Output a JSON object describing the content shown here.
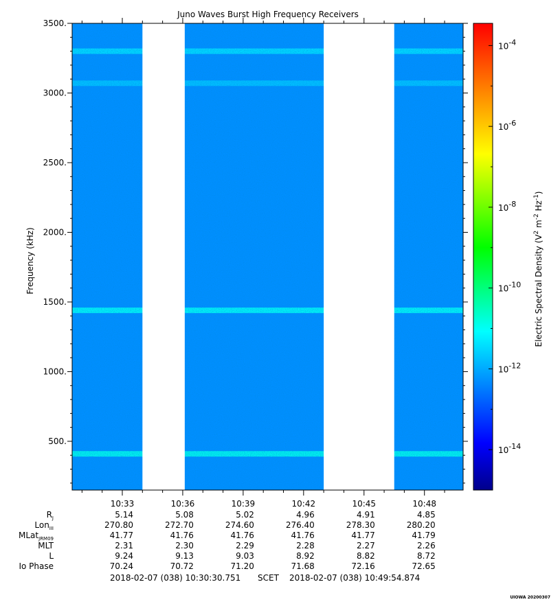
{
  "chart_data": {
    "type": "heatmap",
    "title": "Juno Waves Burst High Frequency Receivers",
    "ylabel": "Frequency (kHz)",
    "ylim": [
      150,
      3500
    ],
    "yticks": [
      500,
      1000,
      1500,
      2000,
      2500,
      3000,
      3500
    ],
    "ytick_labels": [
      "500.",
      "1000.",
      "1500.",
      "2000.",
      "2500.",
      "3000.",
      "3500."
    ],
    "xlim_minutes": [
      30.51,
      49.92
    ],
    "xticks_minutes": [
      33,
      36,
      39,
      42,
      45,
      48
    ],
    "xtick_labels": [
      "10:33",
      "10:36",
      "10:39",
      "10:42",
      "10:45",
      "10:48"
    ],
    "data_gaps_minutes": [
      [
        34.0,
        36.1
      ],
      [
        43.0,
        46.5
      ]
    ],
    "colorbar": {
      "label": "Electric Spectral Density (V",
      "scale": "log",
      "range_log10": [
        -15,
        -3.45
      ],
      "tick_exponents": [
        -14,
        -12,
        -10,
        -8,
        -6,
        -4
      ],
      "tick_base": "10",
      "colormap": [
        "#00008b",
        "#0000ff",
        "#0080ff",
        "#00ffff",
        "#00ff00",
        "#ffff00",
        "#ff8000",
        "#ff0000"
      ]
    },
    "background_level_log10": -12.3,
    "emission_lines": [
      {
        "frequency": 410,
        "level_log10": -10.9
      },
      {
        "frequency": 1440,
        "level_log10": -11.0
      },
      {
        "frequency": 3070,
        "level_log10": -11.7
      },
      {
        "frequency": 3300,
        "level_log10": -11.4
      }
    ],
    "ephemeris": {
      "rows": [
        {
          "label": "R",
          "sub": "J",
          "values": [
            "5.14",
            "5.08",
            "5.02",
            "4.96",
            "4.91",
            "4.85"
          ]
        },
        {
          "label": "Lon",
          "sub": "III",
          "values": [
            "270.80",
            "272.70",
            "274.60",
            "276.40",
            "278.30",
            "280.20"
          ]
        },
        {
          "label": "MLat",
          "sub": "JRM09",
          "values": [
            "41.77",
            "41.76",
            "41.76",
            "41.76",
            "41.77",
            "41.79"
          ]
        },
        {
          "label": "MLT",
          "sub": "",
          "values": [
            "2.31",
            "2.30",
            "2.29",
            "2.28",
            "2.27",
            "2.26"
          ]
        },
        {
          "label": "L",
          "sub": "",
          "values": [
            "9.24",
            "9.13",
            "9.03",
            "8.92",
            "8.82",
            "8.72"
          ]
        },
        {
          "label": "Io Phase",
          "sub": "",
          "values": [
            "70.24",
            "70.72",
            "71.20",
            "71.68",
            "72.16",
            "72.65"
          ]
        }
      ]
    },
    "time_range": {
      "start": "2018-02-07 (038) 10:30:30.751",
      "middle": "SCET",
      "end": "2018-02-07 (038) 10:49:54.874"
    },
    "stamp": "UIOWA 20200307"
  }
}
